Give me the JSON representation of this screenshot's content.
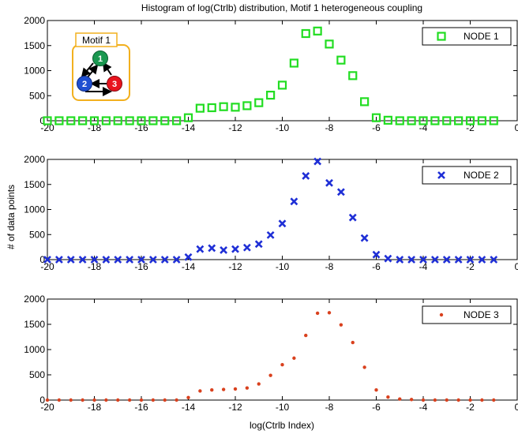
{
  "figure": {
    "title": "Histogram of log(Ctrlb) distribution, Motif 1 heterogeneous coupling",
    "xlabel": "log(Ctrlb Index)",
    "ylabel": "# of data points"
  },
  "inset": {
    "label": "Motif 1",
    "nodes": [
      "1",
      "2",
      "3"
    ],
    "colors": {
      "node1": "#1a9850",
      "node2": "#1f4fd1",
      "node3": "#e8141e",
      "border": "#f2b01e"
    }
  },
  "chart_data": [
    {
      "type": "scatter",
      "xlim": [
        -20,
        0
      ],
      "ylim": [
        0,
        2000
      ],
      "xticks": [
        "-20",
        "-18",
        "-16",
        "-14",
        "-12",
        "-10",
        "-8",
        "-6",
        "-4",
        "-2",
        "0"
      ],
      "yticks": [
        "0",
        "500",
        "1000",
        "1500",
        "2000"
      ],
      "legend_position": "top-right",
      "series": [
        {
          "name": "NODE 1",
          "marker": "square",
          "color": "#22dd22",
          "x": [
            -20,
            -19.5,
            -19,
            -18.5,
            -18,
            -17.5,
            -17,
            -16.5,
            -16,
            -15.5,
            -15,
            -14.5,
            -14,
            -13.5,
            -13,
            -12.5,
            -12,
            -11.5,
            -11,
            -10.5,
            -10,
            -9.5,
            -9,
            -8.5,
            -8,
            -7.5,
            -7,
            -6.5,
            -6,
            -5.5,
            -5,
            -4.5,
            -4,
            -3.5,
            -3,
            -2.5,
            -2,
            -1.5,
            -1
          ],
          "y": [
            0,
            0,
            0,
            0,
            0,
            0,
            0,
            0,
            0,
            0,
            0,
            0,
            60,
            250,
            260,
            280,
            270,
            300,
            360,
            510,
            710,
            1150,
            1740,
            1790,
            1530,
            1210,
            900,
            380,
            60,
            10,
            0,
            0,
            0,
            0,
            0,
            0,
            0,
            0,
            0
          ]
        }
      ]
    },
    {
      "type": "scatter",
      "xlim": [
        -20,
        0
      ],
      "ylim": [
        0,
        2000
      ],
      "xticks": [
        "-20",
        "-18",
        "-16",
        "-14",
        "-12",
        "-10",
        "-8",
        "-6",
        "-4",
        "-2",
        "0"
      ],
      "yticks": [
        "0",
        "500",
        "1000",
        "1500",
        "2000"
      ],
      "legend_position": "top-right",
      "series": [
        {
          "name": "NODE 2",
          "marker": "x",
          "color": "#1f2fd6",
          "x": [
            -20,
            -19.5,
            -19,
            -18.5,
            -18,
            -17.5,
            -17,
            -16.5,
            -16,
            -15.5,
            -15,
            -14.5,
            -14,
            -13.5,
            -13,
            -12.5,
            -12,
            -11.5,
            -11,
            -10.5,
            -10,
            -9.5,
            -9,
            -8.5,
            -8,
            -7.5,
            -7,
            -6.5,
            -6,
            -5.5,
            -5,
            -4.5,
            -4,
            -3.5,
            -3,
            -2.5,
            -2,
            -1.5,
            -1
          ],
          "y": [
            0,
            0,
            0,
            0,
            0,
            0,
            0,
            0,
            0,
            0,
            0,
            0,
            50,
            210,
            230,
            190,
            210,
            240,
            310,
            490,
            720,
            1160,
            1670,
            1960,
            1530,
            1350,
            840,
            430,
            100,
            20,
            0,
            0,
            0,
            0,
            0,
            0,
            0,
            0,
            0
          ]
        }
      ]
    },
    {
      "type": "scatter",
      "xlim": [
        -20,
        0
      ],
      "ylim": [
        0,
        2000
      ],
      "xticks": [
        "-20",
        "-18",
        "-16",
        "-14",
        "-12",
        "-10",
        "-8",
        "-6",
        "-4",
        "-2",
        "0"
      ],
      "yticks": [
        "0",
        "500",
        "1000",
        "1500",
        "2000"
      ],
      "legend_position": "top-right",
      "series": [
        {
          "name": "NODE 3",
          "marker": "dot",
          "color": "#d9411e",
          "x": [
            -20,
            -19.5,
            -19,
            -18.5,
            -18,
            -17.5,
            -17,
            -16.5,
            -16,
            -15.5,
            -15,
            -14.5,
            -14,
            -13.5,
            -13,
            -12.5,
            -12,
            -11.5,
            -11,
            -10.5,
            -10,
            -9.5,
            -9,
            -8.5,
            -8,
            -7.5,
            -7,
            -6.5,
            -6,
            -5.5,
            -5,
            -4.5,
            -4,
            -3.5,
            -3,
            -2.5,
            -2,
            -1.5,
            -1
          ],
          "y": [
            0,
            0,
            0,
            0,
            0,
            0,
            0,
            0,
            0,
            0,
            0,
            0,
            50,
            180,
            200,
            210,
            220,
            240,
            320,
            490,
            700,
            830,
            1280,
            1720,
            1730,
            1490,
            1140,
            650,
            200,
            60,
            20,
            10,
            0,
            0,
            0,
            0,
            0,
            0,
            0
          ]
        }
      ]
    }
  ]
}
